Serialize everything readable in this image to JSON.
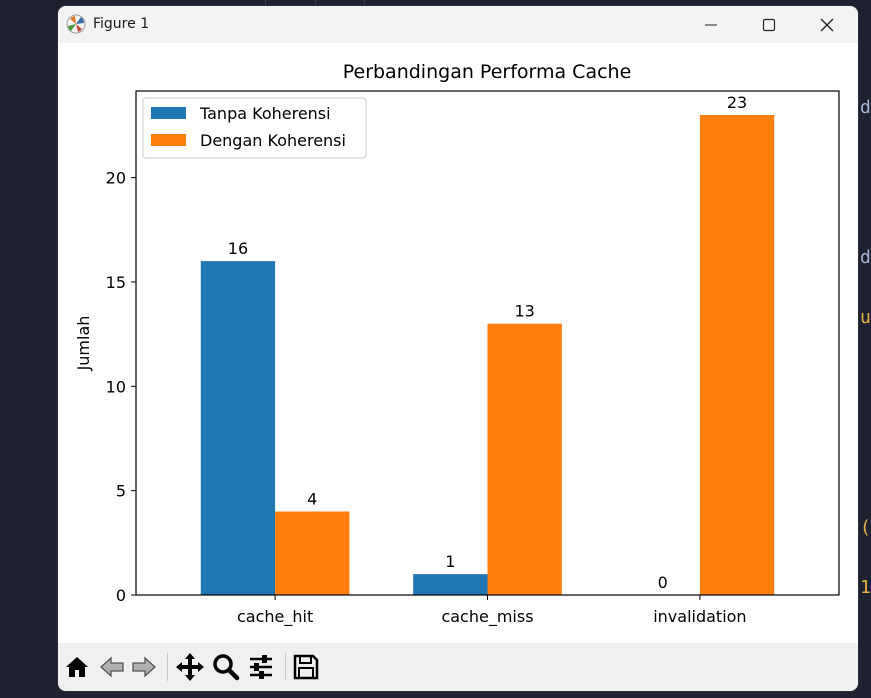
{
  "window": {
    "title": "Figure 1"
  },
  "background": {
    "fragments": [
      "d",
      "d",
      "u",
      "(",
      "1"
    ]
  },
  "toolbar": {
    "buttons": [
      "home-icon",
      "back-icon",
      "forward-icon",
      "pan-icon",
      "zoom-icon",
      "configure-subplots-icon",
      "save-icon"
    ]
  },
  "colors": {
    "series1": "#1f77b4",
    "series2": "#ff7f0e"
  },
  "chart_data": {
    "type": "bar",
    "title": "Perbandingan Performa Cache",
    "xlabel": "",
    "ylabel": "Jumlah",
    "categories": [
      "cache_hit",
      "cache_miss",
      "invalidation"
    ],
    "series": [
      {
        "name": "Tanpa Koherensi",
        "values": [
          16,
          1,
          0
        ]
      },
      {
        "name": "Dengan Koherensi",
        "values": [
          4,
          13,
          23
        ]
      }
    ],
    "ylim": [
      0,
      24.15
    ],
    "yticks": [
      0,
      5,
      10,
      15,
      20
    ],
    "legend": "upper-left",
    "grid": false
  }
}
